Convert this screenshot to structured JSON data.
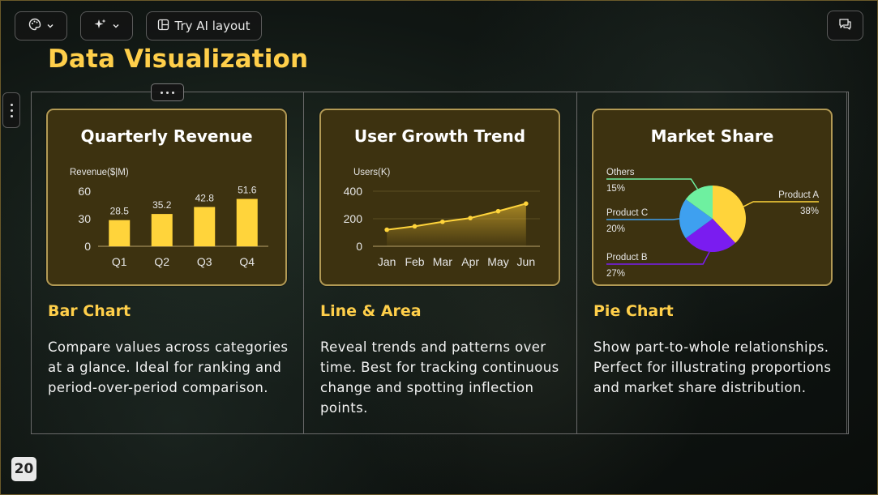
{
  "toolbar": {
    "theme_icon": "palette-icon",
    "magic_icon": "sparkles-icon",
    "ai_icon": "layout-icon",
    "ai_label": "Try AI layout",
    "comment_icon": "comment-icon"
  },
  "slide": {
    "title": "Data Visualization",
    "page_number": "20"
  },
  "cards": [
    {
      "title": "Quarterly Revenue",
      "heading": "Bar Chart",
      "description": "Compare values across categories at a glance. Ideal for ranking and period-over-period comparison."
    },
    {
      "title": "User Growth Trend",
      "heading": "Line & Area",
      "description": "Reveal trends and patterns over time. Best for tracking continuous change and spotting inflection points."
    },
    {
      "title": "Market Share",
      "heading": "Pie Chart",
      "description": "Show part-to-whole relationships. Perfect for illustrating proportions and market share distribution."
    }
  ],
  "colors": {
    "accent": "#ffcf4a",
    "bar": "#ffd43b",
    "card_bg": "#3d3210",
    "card_border": "#b29a55"
  },
  "chart_data": [
    {
      "type": "bar",
      "title": "Quarterly Revenue",
      "ylabel": "Revenue($|M)",
      "categories": [
        "Q1",
        "Q2",
        "Q3",
        "Q4"
      ],
      "values": [
        28.5,
        35.2,
        42.8,
        51.6
      ],
      "yticks": [
        0,
        30,
        60
      ],
      "ylim": [
        0,
        60
      ],
      "grid": false
    },
    {
      "type": "line",
      "title": "User Growth Trend",
      "ylabel": "Users(K)",
      "categories": [
        "Jan",
        "Feb",
        "Mar",
        "Apr",
        "May",
        "Jun"
      ],
      "values": [
        120,
        145,
        178,
        205,
        255,
        310
      ],
      "yticks": [
        0,
        200,
        400
      ],
      "ylim": [
        0,
        400
      ],
      "area": true,
      "grid": true
    },
    {
      "type": "pie",
      "title": "Market Share",
      "slices": [
        {
          "name": "Product A",
          "value": 38,
          "label": "38%",
          "color": "#ffd43b"
        },
        {
          "name": "Product B",
          "value": 27,
          "label": "27%",
          "color": "#7a1cf0"
        },
        {
          "name": "Product C",
          "value": 20,
          "label": "20%",
          "color": "#3ea0f0"
        },
        {
          "name": "Others",
          "value": 15,
          "label": "15%",
          "color": "#6ef0a0"
        }
      ]
    }
  ]
}
